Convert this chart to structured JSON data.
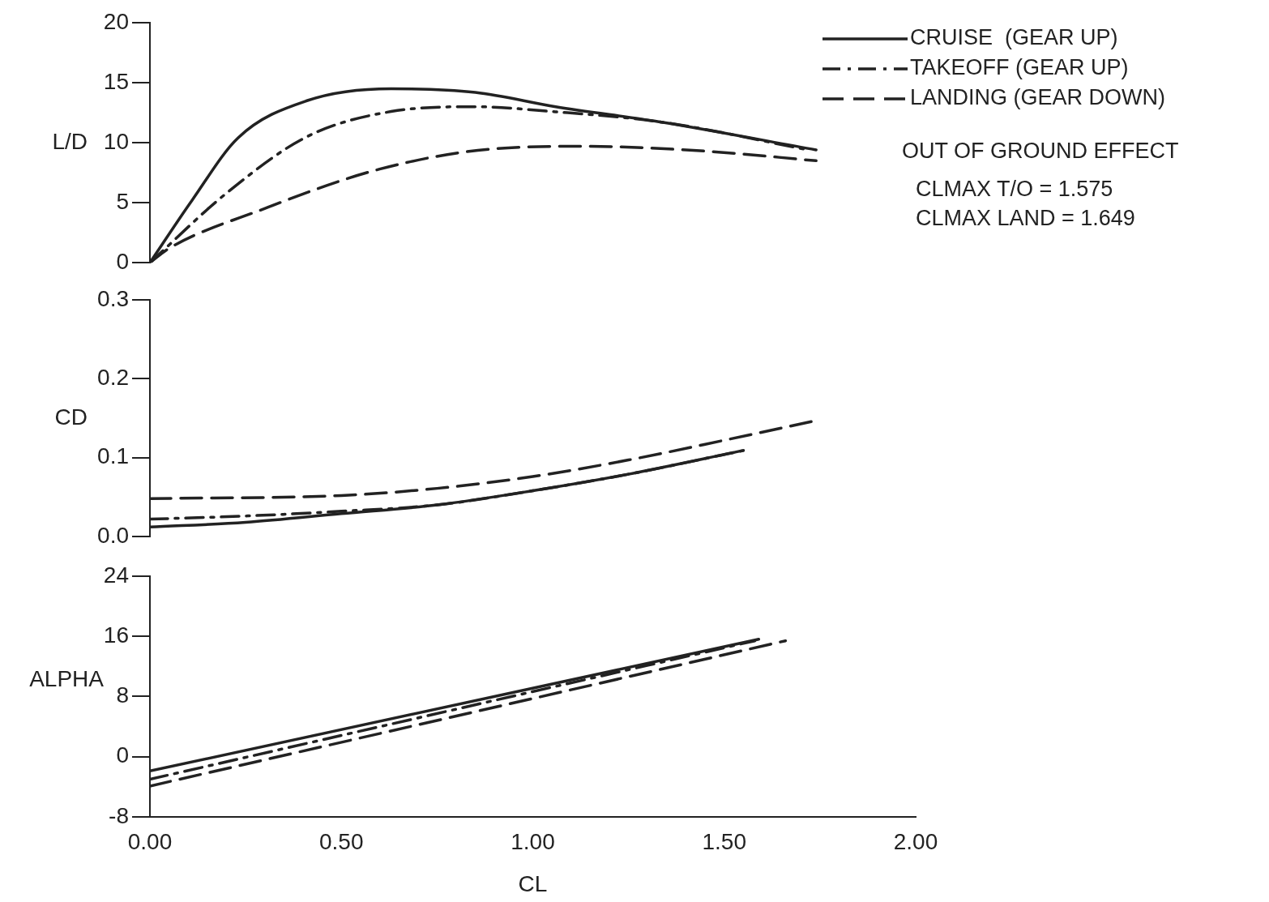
{
  "chart_data": [
    {
      "type": "line",
      "ylabel": "L/D",
      "legend": "top right",
      "tick_labels": "y",
      "xlim": [
        0,
        2
      ],
      "ylim": [
        0,
        20
      ],
      "yticks": [
        0,
        5,
        10,
        15,
        20
      ],
      "grid": false,
      "annotations": [
        "OUT OF GROUND EFFECT",
        "CLMAX T/O = 1.575",
        "CLMAX LAND = 1.649"
      ],
      "series": [
        {
          "name": "CRUISE  (GEAR UP)",
          "color": "#222222",
          "line_style": "solid",
          "x": [
            0,
            0.11,
            0.23,
            0.41,
            0.63,
            0.85,
            1.06,
            1.34,
            1.74
          ],
          "values": [
            0,
            5.2,
            10.4,
            13.5,
            14.5,
            14.2,
            13.0,
            11.7,
            9.4
          ]
        },
        {
          "name": "TAKEOFF (GEAR UP)",
          "color": "#222222",
          "line_style": "dashdot",
          "x": [
            0,
            0.2,
            0.41,
            0.63,
            0.85,
            1.05,
            1.34,
            1.72
          ],
          "values": [
            0,
            5.8,
            10.5,
            12.6,
            13.0,
            12.6,
            11.7,
            9.4
          ]
        },
        {
          "name": "LANDING (GEAR DOWN)",
          "color": "#222222",
          "line_style": "dashed",
          "x": [
            0,
            0.05,
            0.29,
            0.6,
            0.9,
            1.14,
            1.45,
            1.74
          ],
          "values": [
            0,
            1.2,
            4.4,
            7.8,
            9.5,
            9.7,
            9.3,
            8.5
          ]
        }
      ]
    },
    {
      "type": "line",
      "ylabel": "CD",
      "tick_labels": "y",
      "xlim": [
        0,
        2
      ],
      "ylim": [
        0,
        0.3
      ],
      "yticks": [
        {
          "value": 0,
          "label": "0.0"
        },
        {
          "value": 0.1,
          "label": "0.1"
        },
        {
          "value": 0.2,
          "label": "0.2"
        },
        {
          "value": 0.3,
          "label": "0.3"
        }
      ],
      "grid": false,
      "series": [
        {
          "color": "#222222",
          "line_style": "solid",
          "x": [
            0,
            0.25,
            0.5,
            0.75,
            1.0,
            1.25,
            1.55
          ],
          "values": [
            0.012,
            0.018,
            0.029,
            0.04,
            0.058,
            0.079,
            0.109
          ]
        },
        {
          "color": "#222222",
          "line_style": "dashdot",
          "x": [
            0,
            0.25,
            0.5,
            0.75,
            1.0,
            1.25,
            1.55
          ],
          "values": [
            0.022,
            0.026,
            0.032,
            0.04,
            0.058,
            0.079,
            0.109
          ]
        },
        {
          "color": "#222222",
          "line_style": "dashed",
          "x": [
            0,
            0.5,
            0.75,
            1.0,
            1.25,
            1.5,
            1.73
          ],
          "values": [
            0.048,
            0.052,
            0.061,
            0.076,
            0.097,
            0.122,
            0.146
          ]
        }
      ]
    },
    {
      "type": "line",
      "ylabel": "ALPHA",
      "xlabel": "CL",
      "xlim": [
        0,
        2
      ],
      "xticks": [
        {
          "value": 0,
          "label": "0.00"
        },
        {
          "value": 0.5,
          "label": "0.50"
        },
        {
          "value": 1,
          "label": "1.00"
        },
        {
          "value": 1.5,
          "label": "1.50"
        },
        {
          "value": 2,
          "label": "2.00"
        }
      ],
      "ylim": [
        -8,
        24
      ],
      "yticks": [
        -8,
        0,
        8,
        16,
        24
      ],
      "grid": false,
      "series": [
        {
          "color": "#222222",
          "line_style": "solid",
          "x": [
            0,
            1.59
          ],
          "values": [
            -1.9,
            15.6
          ]
        },
        {
          "color": "#222222",
          "line_style": "dashdot",
          "x": [
            0,
            1.58
          ],
          "values": [
            -3.0,
            15.4
          ]
        },
        {
          "color": "#222222",
          "line_style": "dashed",
          "x": [
            0,
            1.66
          ],
          "values": [
            -3.9,
            15.4
          ]
        }
      ]
    }
  ]
}
